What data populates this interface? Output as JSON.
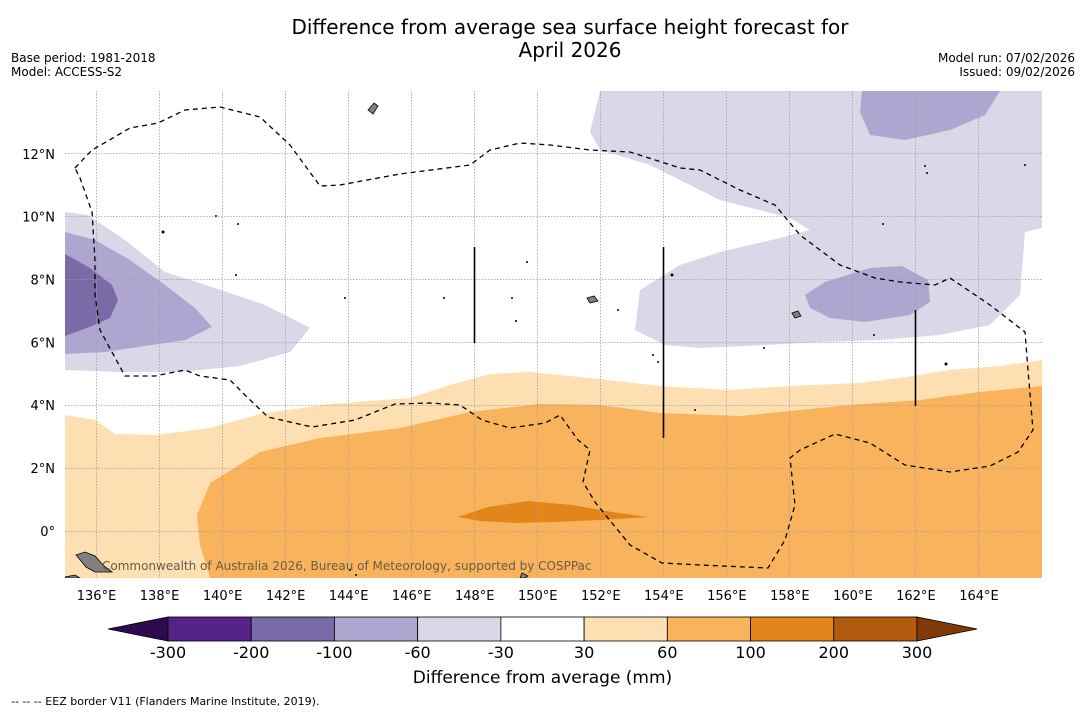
{
  "title": {
    "line1": "Difference from average sea surface height forecast for",
    "line2": "April 2026"
  },
  "meta": {
    "base_period": "Base period: 1981-2018",
    "model": "Model: ACCESS-S2",
    "model_run": "Model run: 07/02/2026",
    "issued": "Issued: 09/02/2026"
  },
  "map": {
    "lon_range": [
      135,
      166
    ],
    "lat_range": [
      -1.5,
      14
    ],
    "lon_ticks": [
      {
        "value": 136,
        "label": "136°E"
      },
      {
        "value": 138,
        "label": "138°E"
      },
      {
        "value": 140,
        "label": "140°E"
      },
      {
        "value": 142,
        "label": "142°E"
      },
      {
        "value": 144,
        "label": "144°E"
      },
      {
        "value": 146,
        "label": "146°E"
      },
      {
        "value": 148,
        "label": "148°E"
      },
      {
        "value": 150,
        "label": "150°E"
      },
      {
        "value": 152,
        "label": "152°E"
      },
      {
        "value": 154,
        "label": "154°E"
      },
      {
        "value": 156,
        "label": "156°E"
      },
      {
        "value": 158,
        "label": "158°E"
      },
      {
        "value": 160,
        "label": "160°E"
      },
      {
        "value": 162,
        "label": "162°E"
      },
      {
        "value": 164,
        "label": "164°E"
      }
    ],
    "lat_ticks": [
      {
        "value": 0,
        "label": "0°"
      },
      {
        "value": 2,
        "label": "2°N"
      },
      {
        "value": 4,
        "label": "4°N"
      },
      {
        "value": 6,
        "label": "6°N"
      },
      {
        "value": 8,
        "label": "8°N"
      },
      {
        "value": 10,
        "label": "10°N"
      },
      {
        "value": 12,
        "label": "12°N"
      }
    ],
    "copyright": "Commonwealth of Australia 2026, Bureau of Meteorology, supported by COSPPac"
  },
  "colorbar": {
    "title": "Difference from average (mm)",
    "labels": [
      "-300",
      "-200",
      "-100",
      "-60",
      "-30",
      "30",
      "60",
      "100",
      "200",
      "300"
    ],
    "colors": {
      "under": "#2e0a4e",
      "bins": [
        "#552288",
        "#7b6aa8",
        "#aea6d0",
        "#d8d8e8",
        "#ffffff",
        "#fddfb2",
        "#f9b35c",
        "#e2861c",
        "#b35c0e"
      ],
      "over": "#7f3a08"
    }
  },
  "footnote": "--  --  -- EEZ border V11 (Flanders Marine Institute, 2019)."
}
